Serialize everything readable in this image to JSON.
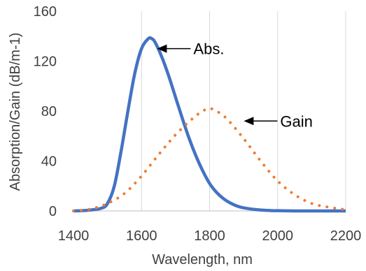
{
  "chart_data": {
    "type": "line",
    "title": "",
    "xlabel": "Wavelength, nm",
    "ylabel": "Absorption/Gain (dB/m-1)",
    "xlim": [
      1400,
      2200
    ],
    "ylim": [
      0,
      160
    ],
    "x_ticks": [
      1400,
      1600,
      1800,
      2000,
      2200
    ],
    "y_ticks": [
      0,
      40,
      80,
      120,
      160
    ],
    "x_tick_labels": [
      "1400",
      "1600",
      "1800",
      "2000",
      "2200"
    ],
    "y_tick_labels": [
      "0",
      "40",
      "80",
      "120",
      "160"
    ],
    "grid": "vertical",
    "legend": "none",
    "series": [
      {
        "style": "solid",
        "color": "#4472C4",
        "x": [
          1400,
          1440,
          1480,
          1500,
          1520,
          1540,
          1560,
          1580,
          1600,
          1620,
          1630,
          1640,
          1660,
          1680,
          1700,
          1720,
          1740,
          1760,
          1780,
          1800,
          1820,
          1840,
          1860,
          1880,
          1900,
          1940,
          1980,
          2000,
          2050,
          2100,
          2200
        ],
        "y": [
          0,
          0.5,
          2,
          6,
          20,
          48,
          80,
          110,
          130,
          138,
          138,
          135,
          123,
          108,
          91,
          74,
          58,
          44,
          32,
          22,
          15,
          10,
          6.5,
          4,
          2.5,
          1,
          0.3,
          0.2,
          0,
          0,
          0
        ]
      },
      {
        "style": "dotted",
        "color": "#ED7D31",
        "x": [
          1400,
          1450,
          1500,
          1550,
          1600,
          1650,
          1700,
          1750,
          1780,
          1800,
          1820,
          1850,
          1900,
          1950,
          2000,
          2050,
          2100,
          2150,
          2200
        ],
        "y": [
          0,
          1.5,
          6,
          14,
          28,
          45,
          61,
          74,
          80,
          82,
          80,
          74,
          58,
          40,
          24,
          13,
          6,
          3,
          1
        ]
      }
    ],
    "annotations": [
      {
        "text": "Abs.",
        "series": 0,
        "x": 1625,
        "y": 130
      },
      {
        "text": "Gain",
        "series": 1,
        "x": 1880,
        "y": 72
      }
    ]
  }
}
